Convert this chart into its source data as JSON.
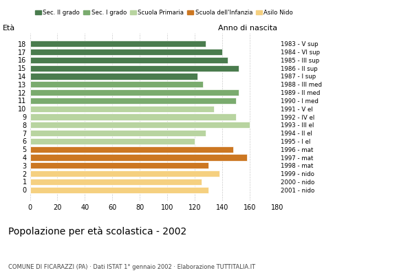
{
  "ages": [
    18,
    17,
    16,
    15,
    14,
    13,
    12,
    11,
    10,
    9,
    8,
    7,
    6,
    5,
    4,
    3,
    2,
    1,
    0
  ],
  "values": [
    128,
    140,
    144,
    152,
    122,
    126,
    152,
    150,
    134,
    150,
    160,
    128,
    120,
    148,
    158,
    130,
    138,
    125,
    130
  ],
  "anno_nascita": [
    "1983 - V sup",
    "1984 - VI sup",
    "1985 - III sup",
    "1986 - II sup",
    "1987 - I sup",
    "1988 - III med",
    "1989 - II med",
    "1990 - I med",
    "1991 - V el",
    "1992 - IV el",
    "1993 - III el",
    "1994 - II el",
    "1995 - I el",
    "1996 - mat",
    "1997 - mat",
    "1998 - mat",
    "1999 - nido",
    "2000 - nido",
    "2001 - nido"
  ],
  "colors": [
    "#4a7c4e",
    "#4a7c4e",
    "#4a7c4e",
    "#4a7c4e",
    "#4a7c4e",
    "#7aab6e",
    "#7aab6e",
    "#7aab6e",
    "#b8d4a0",
    "#b8d4a0",
    "#b8d4a0",
    "#b8d4a0",
    "#b8d4a0",
    "#cc7722",
    "#cc7722",
    "#cc7722",
    "#f5d080",
    "#f5d080",
    "#f5d080"
  ],
  "legend_labels": [
    "Sec. II grado",
    "Sec. I grado",
    "Scuola Primaria",
    "Scuola dell'Infanzia",
    "Asilo Nido"
  ],
  "legend_colors": [
    "#4a7c4e",
    "#7aab6e",
    "#b8d4a0",
    "#cc7722",
    "#f5d080"
  ],
  "title": "Popolazione per età scolastica - 2002",
  "subtitle": "COMUNE DI FICARAZZI (PA) · Dati ISTAT 1° gennaio 2002 · Elaborazione TUTTITALIA.IT",
  "ylabel_left": "Età",
  "ylabel_right": "Anno di nascita",
  "xlim": [
    0,
    180
  ],
  "xticks": [
    0,
    20,
    40,
    60,
    80,
    100,
    120,
    140,
    160,
    180
  ],
  "background_color": "#ffffff",
  "grid_color": "#cccccc",
  "dashed_lines": [
    140,
    160
  ]
}
